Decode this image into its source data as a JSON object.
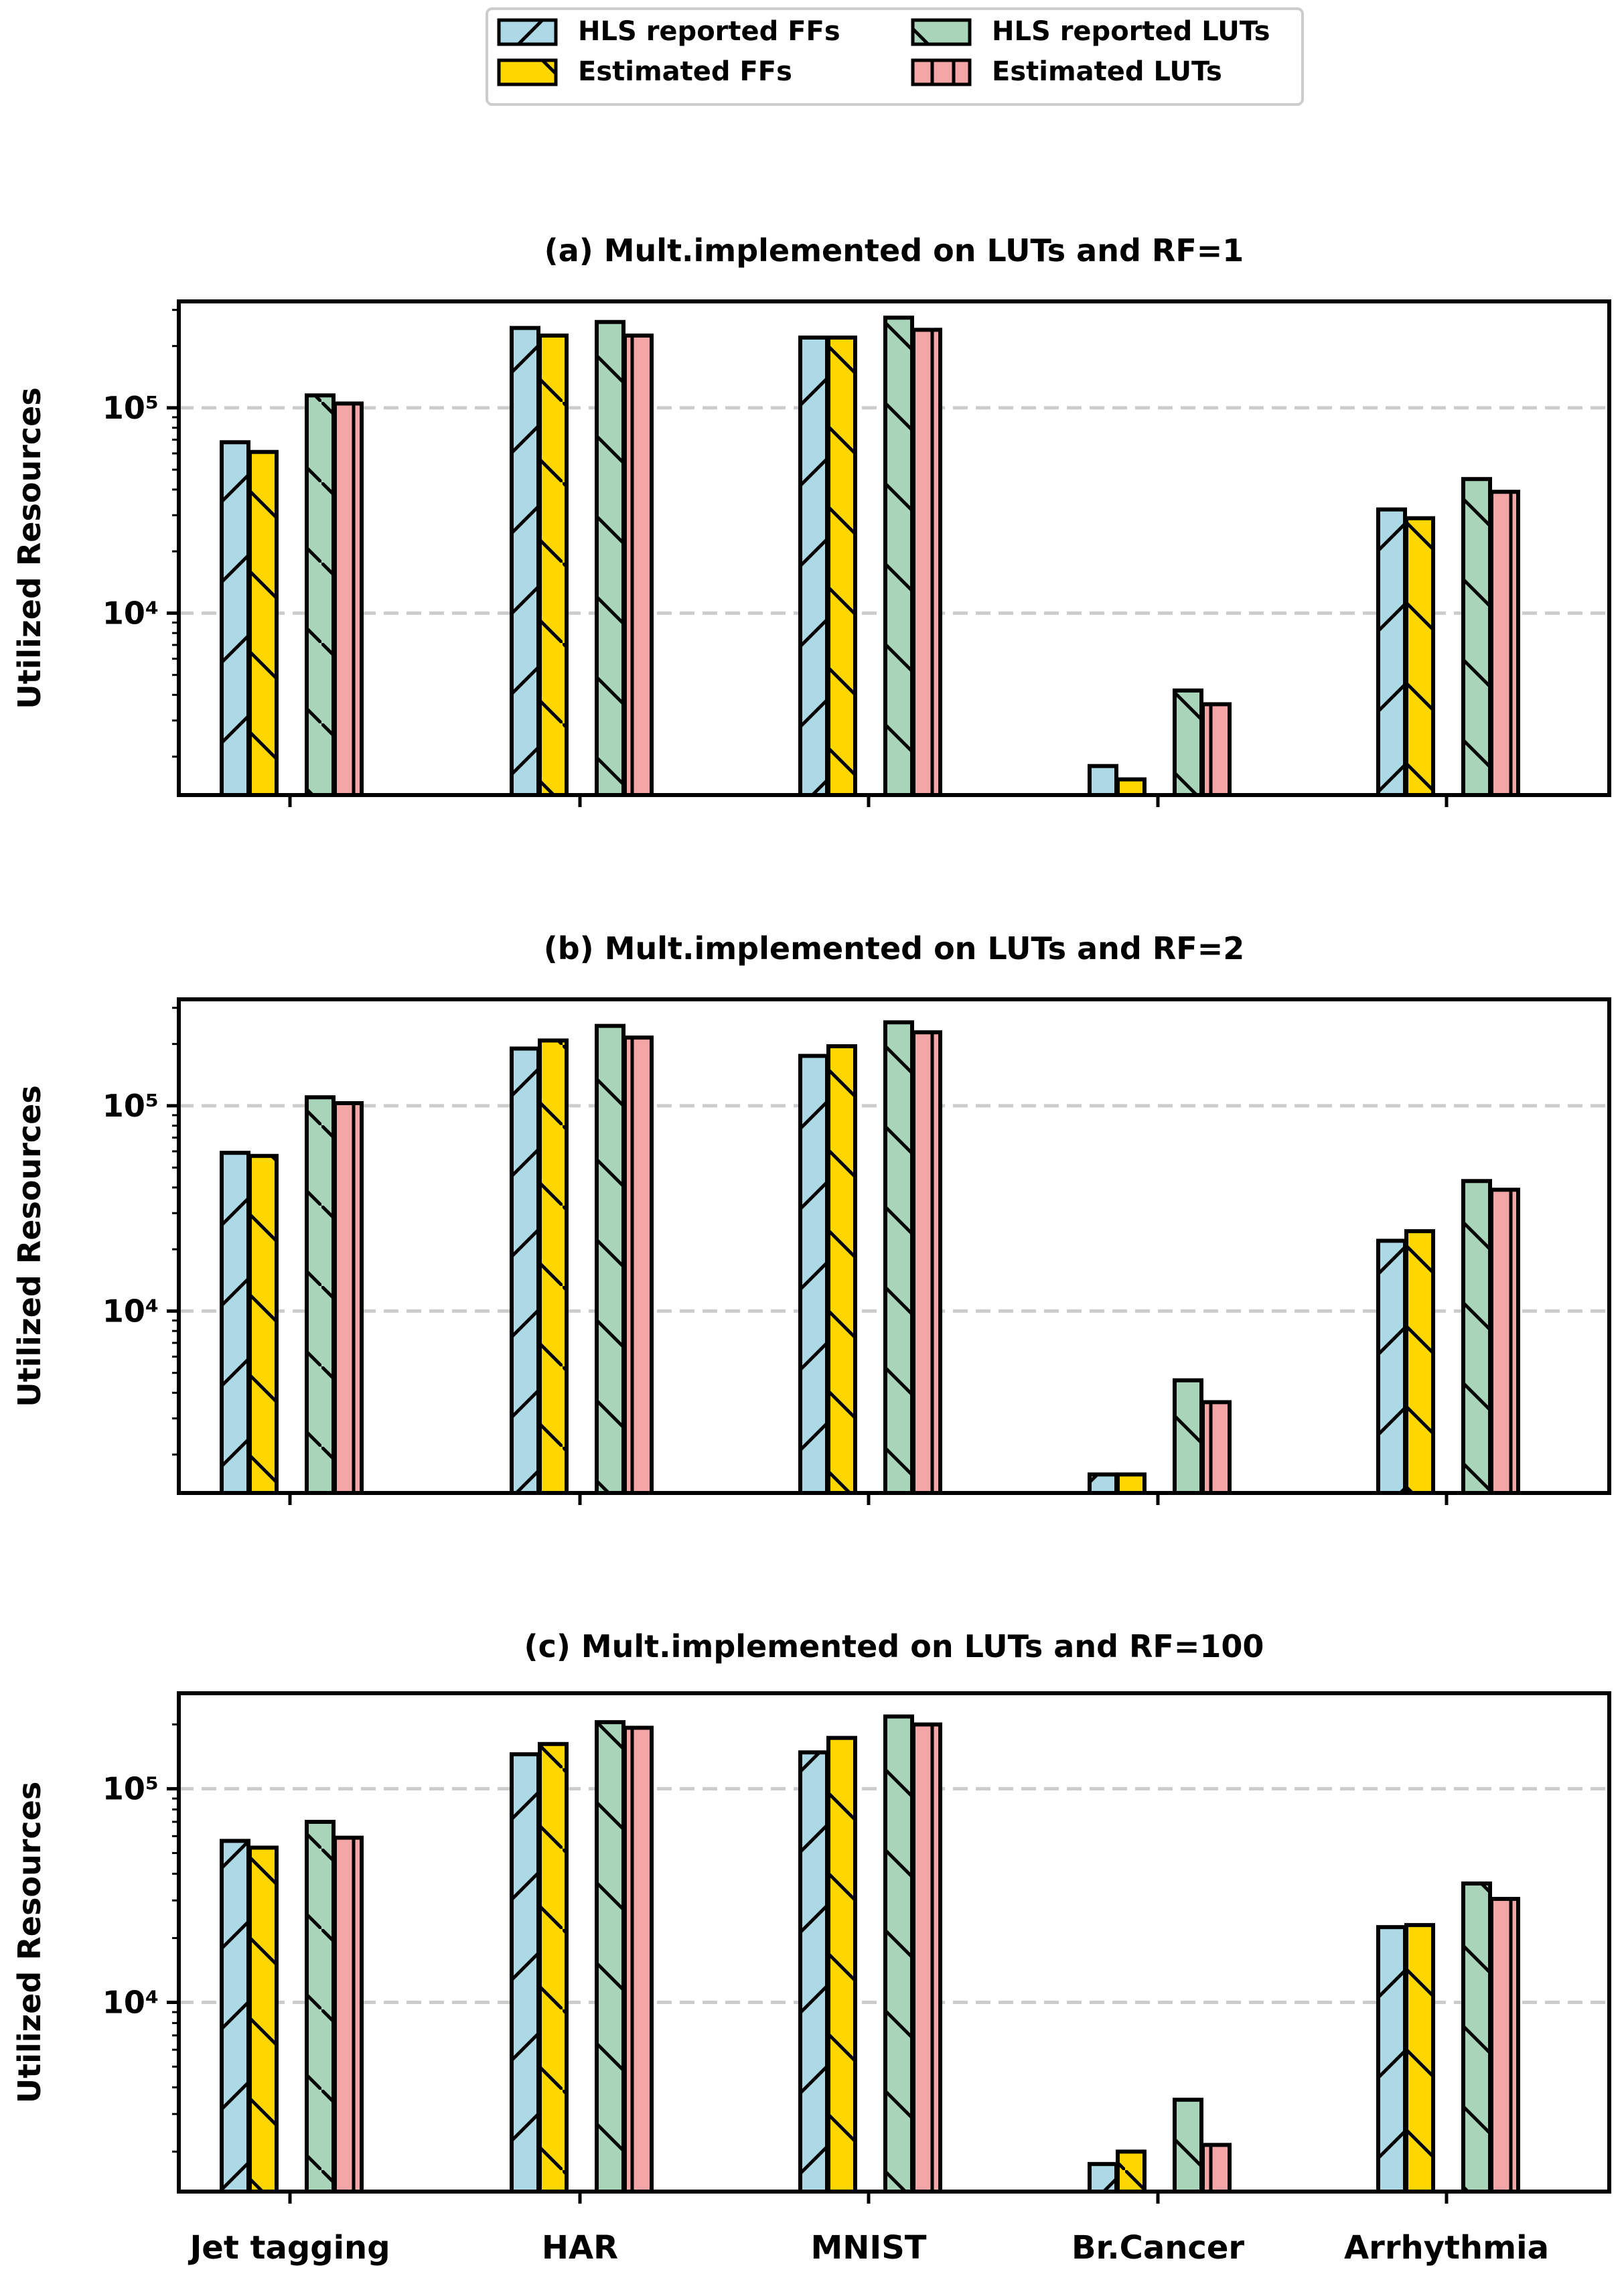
{
  "legend": {
    "items": [
      {
        "label": "HLS reported FFs",
        "color": "#add8e6",
        "hatch": "/"
      },
      {
        "label": "Estimated FFs",
        "color": "#ffd700",
        "hatch": "\\"
      },
      {
        "label": "HLS reported LUTs",
        "color": "#a8d5ba",
        "hatch": "\\"
      },
      {
        "label": "Estimated LUTs",
        "color": "#f4a6a6",
        "hatch": "|"
      }
    ],
    "placement": "top-center"
  },
  "chart_data": [
    {
      "type": "bar",
      "title": "(a) Mult.implemented on LUTs and RF=1",
      "ylabel": "Utilized Resources",
      "yscale": "log",
      "ylim": [
        1300,
        330000
      ],
      "yticks": [
        {
          "value": 10000,
          "label": "10⁴"
        },
        {
          "value": 100000,
          "label": "10⁵"
        }
      ],
      "grid": "horizontal dashed at major ticks",
      "categories": [
        "Jet tagging",
        "HAR",
        "MNIST",
        "Br.Cancer",
        "Arrhythmia"
      ],
      "series": [
        {
          "name": "HLS reported FFs",
          "values": [
            68000,
            245000,
            220000,
            1800,
            32000
          ]
        },
        {
          "name": "Estimated FFs",
          "values": [
            61000,
            225000,
            220000,
            1550,
            29000
          ]
        },
        {
          "name": "HLS reported LUTs",
          "values": [
            115000,
            262000,
            275000,
            4200,
            45000
          ]
        },
        {
          "name": "Estimated LUTs",
          "values": [
            105000,
            225000,
            240000,
            3600,
            39000
          ]
        }
      ]
    },
    {
      "type": "bar",
      "title": "(b) Mult.implemented on LUTs and RF=2",
      "ylabel": "Utilized Resources",
      "yscale": "log",
      "ylim": [
        1300,
        330000
      ],
      "yticks": [
        {
          "value": 10000,
          "label": "10⁴"
        },
        {
          "value": 100000,
          "label": "10⁵"
        }
      ],
      "grid": "horizontal dashed at major ticks",
      "categories": [
        "Jet tagging",
        "HAR",
        "MNIST",
        "Br.Cancer",
        "Arrhythmia"
      ],
      "series": [
        {
          "name": "HLS reported FFs",
          "values": [
            59000,
            190000,
            175000,
            1600,
            22000
          ]
        },
        {
          "name": "Estimated FFs",
          "values": [
            57000,
            208000,
            195000,
            1600,
            24500
          ]
        },
        {
          "name": "HLS reported LUTs",
          "values": [
            110000,
            245000,
            255000,
            4600,
            43000
          ]
        },
        {
          "name": "Estimated LUTs",
          "values": [
            103000,
            215000,
            228000,
            3600,
            39000
          ]
        }
      ]
    },
    {
      "type": "bar",
      "title": "(c) Mult.implemented on LUTs and RF=100",
      "ylabel": "Utilized Resources",
      "yscale": "log",
      "ylim": [
        1300,
        280000
      ],
      "yticks": [
        {
          "value": 10000,
          "label": "10⁴"
        },
        {
          "value": 100000,
          "label": "10⁵"
        }
      ],
      "grid": "horizontal dashed at major ticks",
      "categories": [
        "Jet tagging",
        "HAR",
        "MNIST",
        "Br.Cancer",
        "Arrhythmia"
      ],
      "series": [
        {
          "name": "HLS reported FFs",
          "values": [
            57000,
            145000,
            148000,
            1750,
            22500
          ]
        },
        {
          "name": "Estimated FFs",
          "values": [
            53000,
            162000,
            173000,
            2000,
            23000
          ]
        },
        {
          "name": "HLS reported LUTs",
          "values": [
            70000,
            205000,
            218000,
            3500,
            36000
          ]
        },
        {
          "name": "Estimated LUTs",
          "values": [
            59000,
            193000,
            200000,
            2150,
            30500
          ]
        }
      ]
    }
  ]
}
